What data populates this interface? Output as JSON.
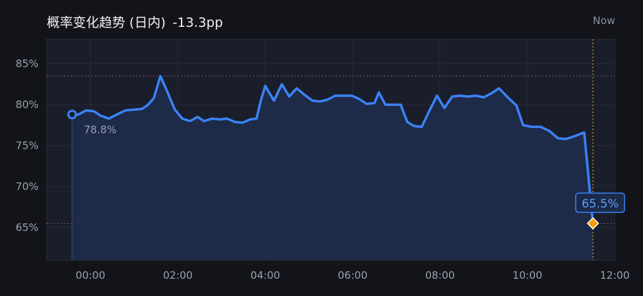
{
  "header": {
    "title": "概率变化趋势 (日内)",
    "delta": "-13.3pp",
    "now_label": "Now"
  },
  "colors": {
    "background": "#121419",
    "plot_background": "#1a1e2b",
    "line": "#3b82f6",
    "area_fill": "#1f2d4d",
    "now_marker": "#f59e0b",
    "grid": "#262b38"
  },
  "chart_data": {
    "type": "area",
    "title": "概率变化趋势 (日内)",
    "xlabel": "",
    "ylabel": "",
    "x_unit": "hours",
    "xlim": [
      -1.0,
      12.0
    ],
    "ylim": [
      61,
      88
    ],
    "x_ticks": [
      0,
      2,
      4,
      6,
      8,
      10,
      12
    ],
    "x_tick_labels": [
      "00:00",
      "02:00",
      "04:00",
      "06:00",
      "08:00",
      "10:00",
      "12:00"
    ],
    "y_ticks": [
      65,
      70,
      75,
      80,
      85
    ],
    "y_tick_labels": [
      "65%",
      "70%",
      "75%",
      "80%",
      "85%"
    ],
    "grid": true,
    "reference_lines": [
      83.5,
      65.5
    ],
    "now_x": 11.5,
    "series": [
      {
        "x": [
          -0.42,
          -0.28,
          -0.1,
          0.08,
          0.22,
          0.42,
          0.6,
          0.8,
          1.0,
          1.18,
          1.3,
          1.45,
          1.6,
          1.75,
          1.93,
          2.1,
          2.28,
          2.45,
          2.6,
          2.78,
          2.95,
          3.13,
          3.3,
          3.48,
          3.65,
          3.8,
          3.9,
          4.0,
          4.2,
          4.38,
          4.55,
          4.72,
          4.9,
          5.08,
          5.25,
          5.42,
          5.6,
          5.8,
          5.98,
          6.15,
          6.32,
          6.5,
          6.6,
          6.75,
          6.92,
          7.1,
          7.25,
          7.4,
          7.58,
          7.75,
          7.93,
          8.1,
          8.28,
          8.45,
          8.63,
          8.82,
          9.0,
          9.18,
          9.35,
          9.55,
          9.75,
          9.9,
          10.1,
          10.3,
          10.5,
          10.7,
          10.88,
          11.05,
          11.3,
          11.5
        ],
        "y": [
          78.8,
          78.8,
          79.3,
          79.2,
          78.7,
          78.3,
          78.8,
          79.3,
          79.4,
          79.5,
          79.9,
          80.8,
          83.5,
          81.7,
          79.4,
          78.3,
          78.0,
          78.5,
          78.0,
          78.3,
          78.2,
          78.3,
          77.9,
          77.8,
          78.2,
          78.3,
          80.5,
          82.3,
          80.5,
          82.5,
          81.0,
          82.0,
          81.2,
          80.5,
          80.4,
          80.6,
          81.1,
          81.1,
          81.1,
          80.7,
          80.1,
          80.2,
          81.5,
          80.0,
          80.0,
          80.0,
          77.9,
          77.4,
          77.3,
          79.2,
          81.1,
          79.6,
          81.0,
          81.1,
          81.0,
          81.1,
          80.9,
          81.4,
          82.0,
          80.9,
          79.9,
          77.5,
          77.3,
          77.3,
          76.8,
          75.9,
          75.8,
          76.1,
          76.6,
          65.5
        ]
      }
    ],
    "annotations": {
      "start": {
        "x": -0.42,
        "y": 78.8,
        "label": "78.8%"
      },
      "end": {
        "x": 11.5,
        "y": 65.5,
        "label": "65.5%"
      }
    }
  }
}
